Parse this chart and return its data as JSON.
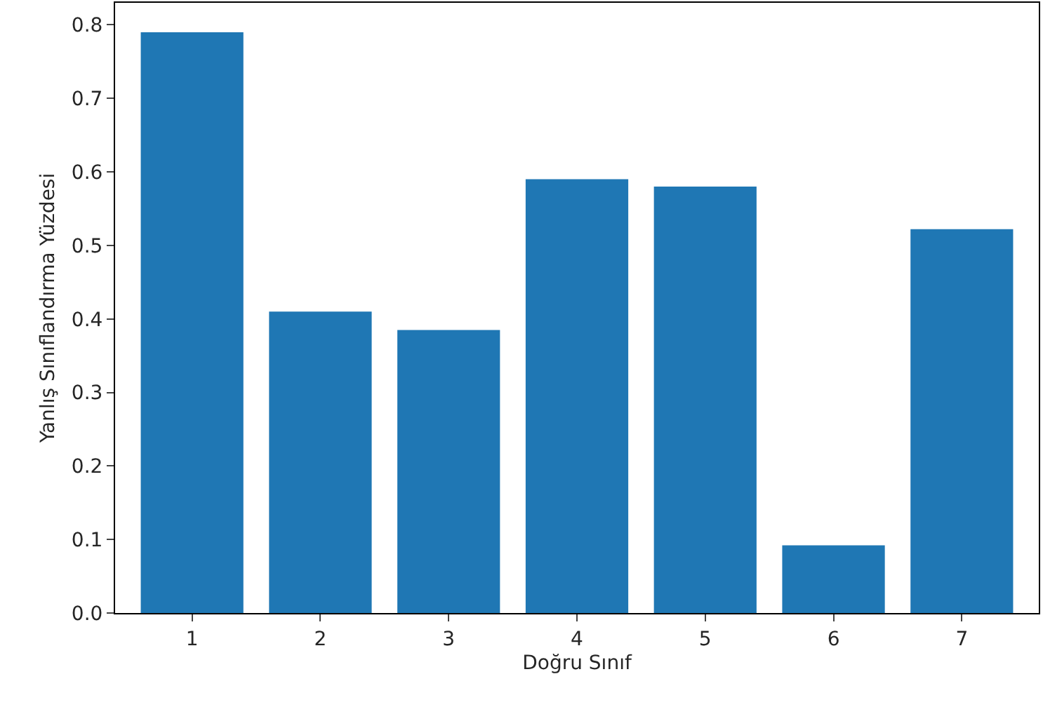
{
  "chart_data": {
    "type": "bar",
    "xlabel": "Doğru Sınıf",
    "ylabel": "Yanlış Sınıflandırma Yüzdesi",
    "categories": [
      "1",
      "2",
      "3",
      "4",
      "5",
      "6",
      "7"
    ],
    "values": [
      0.79,
      0.41,
      0.385,
      0.59,
      0.58,
      0.092,
      0.522
    ],
    "color": "#1f77b4",
    "ylim": [
      0,
      0.83
    ],
    "yticks": [
      {
        "value": 0,
        "label": "0.0"
      },
      {
        "value": 0.1,
        "label": "0.1"
      },
      {
        "value": 0.2,
        "label": "0.2"
      },
      {
        "value": 0.3,
        "label": "0.3"
      },
      {
        "value": 0.4,
        "label": "0.4"
      },
      {
        "value": 0.5,
        "label": "0.5"
      },
      {
        "value": 0.6,
        "label": "0.6"
      },
      {
        "value": 0.7,
        "label": "0.7"
      },
      {
        "value": 0.8,
        "label": "0.8"
      }
    ],
    "legend": false
  }
}
